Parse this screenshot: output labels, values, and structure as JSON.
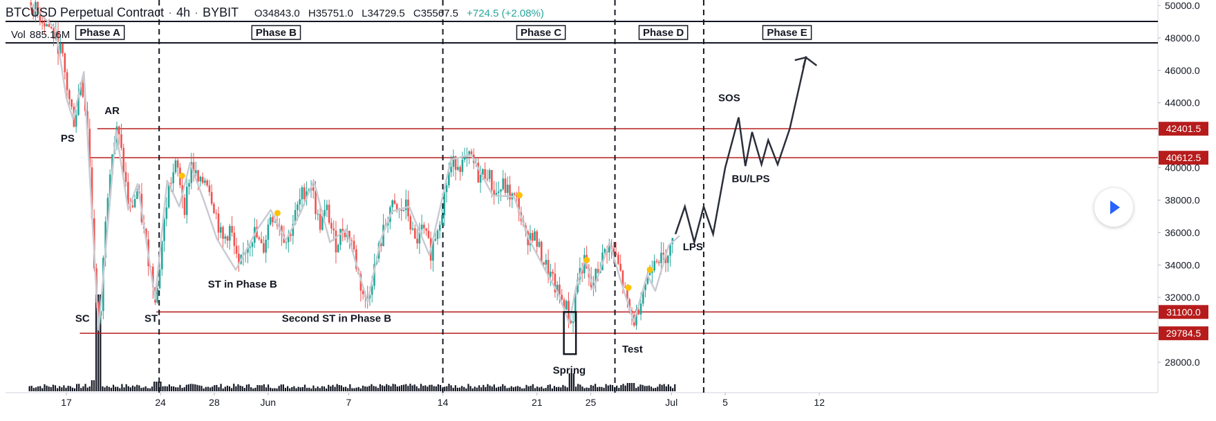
{
  "header": {
    "symbol": "BTCUSD Perpetual Contract",
    "interval": "4h",
    "exchange": "BYBIT",
    "open": "O34843.0",
    "high": "H35751.0",
    "low": "L34729.5",
    "close": "C35567.5",
    "change": "+724.5 (+2.08%)"
  },
  "volume": {
    "label": "Vol",
    "value": "885.16M"
  },
  "colors": {
    "up": "#26a69a",
    "down": "#ef5350",
    "level_line": "#b71c1c",
    "path": "#2a2e39",
    "wyckoff_wave": "#c9cbd3",
    "marker": "#ffc107"
  },
  "chart_data": {
    "type": "line",
    "title": "",
    "xlabel": "",
    "ylabel": "",
    "ylim": [
      25500,
      50500
    ],
    "x_ticks": [
      {
        "day": 17,
        "label": "17"
      },
      {
        "day": 24,
        "label": "24"
      },
      {
        "day": 28,
        "label": "28"
      },
      {
        "day": 32,
        "label": "Jun"
      },
      {
        "day": 38,
        "label": "7"
      },
      {
        "day": 45,
        "label": "14"
      },
      {
        "day": 52,
        "label": "21"
      },
      {
        "day": 56,
        "label": "25"
      },
      {
        "day": 62,
        "label": "Jul"
      },
      {
        "day": 66,
        "label": "5"
      },
      {
        "day": 73,
        "label": "12"
      }
    ],
    "y_ticks": [
      {
        "value": 28000,
        "label": "28000.0"
      },
      {
        "value": 32000,
        "label": "32000.0"
      },
      {
        "value": 34000,
        "label": "34000.0"
      },
      {
        "value": 36000,
        "label": "36000.0"
      },
      {
        "value": 38000,
        "label": "38000.0"
      },
      {
        "value": 40000,
        "label": "40000.0"
      },
      {
        "value": 44000,
        "label": "44000.0"
      },
      {
        "value": 46000,
        "label": "46000.0"
      },
      {
        "value": 48000,
        "label": "48000.0"
      },
      {
        "value": 50000,
        "label": "50000.0"
      }
    ],
    "levels": [
      {
        "value": 42401.5,
        "label": "42401.5",
        "start_day": 19.3
      },
      {
        "value": 40612.5,
        "label": "40612.5",
        "start_day": 18.6
      },
      {
        "value": 31100.0,
        "label": "31100.0",
        "start_day": 23.7
      },
      {
        "value": 29784.5,
        "label": "29784.5",
        "start_day": 18.0
      }
    ],
    "phase_dividers_day": [
      23.9,
      45.0,
      57.8,
      64.4
    ],
    "phases": [
      {
        "label": "Phase A",
        "day": 19.5
      },
      {
        "label": "Phase B",
        "day": 32.6
      },
      {
        "label": "Phase C",
        "day": 52.3
      },
      {
        "label": "Phase D",
        "day": 61.4
      },
      {
        "label": "Phase E",
        "day": 70.6
      }
    ],
    "price_series": [
      {
        "day": 14.2,
        "value": 50200
      },
      {
        "day": 15.0,
        "value": 49400
      },
      {
        "day": 15.8,
        "value": 48600
      },
      {
        "day": 16.6,
        "value": 47200
      },
      {
        "day": 17.2,
        "value": 44200
      },
      {
        "day": 17.6,
        "value": 42800
      },
      {
        "day": 18.1,
        "value": 45600
      },
      {
        "day": 18.6,
        "value": 42400
      },
      {
        "day": 19.2,
        "value": 31800
      },
      {
        "day": 19.5,
        "value": 29900
      },
      {
        "day": 19.9,
        "value": 37000
      },
      {
        "day": 20.3,
        "value": 40600
      },
      {
        "day": 20.8,
        "value": 42400
      },
      {
        "day": 21.2,
        "value": 40300
      },
      {
        "day": 21.7,
        "value": 37200
      },
      {
        "day": 22.3,
        "value": 38600
      },
      {
        "day": 22.8,
        "value": 35800
      },
      {
        "day": 23.3,
        "value": 33600
      },
      {
        "day": 23.7,
        "value": 31800
      },
      {
        "day": 24.1,
        "value": 35400
      },
      {
        "day": 24.6,
        "value": 38800
      },
      {
        "day": 25.2,
        "value": 40200
      },
      {
        "day": 25.8,
        "value": 37600
      },
      {
        "day": 26.3,
        "value": 40300
      },
      {
        "day": 26.9,
        "value": 38800
      },
      {
        "day": 27.4,
        "value": 39500
      },
      {
        "day": 28.0,
        "value": 37600
      },
      {
        "day": 28.6,
        "value": 35400
      },
      {
        "day": 29.2,
        "value": 36300
      },
      {
        "day": 29.8,
        "value": 33600
      },
      {
        "day": 30.4,
        "value": 35200
      },
      {
        "day": 31.0,
        "value": 36000
      },
      {
        "day": 31.6,
        "value": 34800
      },
      {
        "day": 32.2,
        "value": 37200
      },
      {
        "day": 32.8,
        "value": 36600
      },
      {
        "day": 33.4,
        "value": 35400
      },
      {
        "day": 34.0,
        "value": 37000
      },
      {
        "day": 34.6,
        "value": 38500
      },
      {
        "day": 35.2,
        "value": 39000
      },
      {
        "day": 35.8,
        "value": 36400
      },
      {
        "day": 36.4,
        "value": 37400
      },
      {
        "day": 37.0,
        "value": 35200
      },
      {
        "day": 37.6,
        "value": 36300
      },
      {
        "day": 38.2,
        "value": 35600
      },
      {
        "day": 38.8,
        "value": 33000
      },
      {
        "day": 39.3,
        "value": 31600
      },
      {
        "day": 39.9,
        "value": 33800
      },
      {
        "day": 40.5,
        "value": 35800
      },
      {
        "day": 41.1,
        "value": 37600
      },
      {
        "day": 41.7,
        "value": 37200
      },
      {
        "day": 42.3,
        "value": 37600
      },
      {
        "day": 42.9,
        "value": 35300
      },
      {
        "day": 43.5,
        "value": 36200
      },
      {
        "day": 44.1,
        "value": 34800
      },
      {
        "day": 44.6,
        "value": 36400
      },
      {
        "day": 45.0,
        "value": 37800
      },
      {
        "day": 45.4,
        "value": 39600
      },
      {
        "day": 45.9,
        "value": 40400
      },
      {
        "day": 46.5,
        "value": 40200
      },
      {
        "day": 47.1,
        "value": 40600
      },
      {
        "day": 47.7,
        "value": 39400
      },
      {
        "day": 48.3,
        "value": 39800
      },
      {
        "day": 48.9,
        "value": 38300
      },
      {
        "day": 49.5,
        "value": 38900
      },
      {
        "day": 50.1,
        "value": 38200
      },
      {
        "day": 50.6,
        "value": 37800
      },
      {
        "day": 51.1,
        "value": 35600
      },
      {
        "day": 51.7,
        "value": 36000
      },
      {
        "day": 52.3,
        "value": 34600
      },
      {
        "day": 52.9,
        "value": 33500
      },
      {
        "day": 53.5,
        "value": 32300
      },
      {
        "day": 54.1,
        "value": 31600
      },
      {
        "day": 54.6,
        "value": 30200
      },
      {
        "day": 55.0,
        "value": 33200
      },
      {
        "day": 55.5,
        "value": 34200
      },
      {
        "day": 56.0,
        "value": 32500
      },
      {
        "day": 56.6,
        "value": 33800
      },
      {
        "day": 57.2,
        "value": 35200
      },
      {
        "day": 57.8,
        "value": 34600
      },
      {
        "day": 58.3,
        "value": 33200
      },
      {
        "day": 58.8,
        "value": 31200
      },
      {
        "day": 59.3,
        "value": 30500
      },
      {
        "day": 59.8,
        "value": 32400
      },
      {
        "day": 60.3,
        "value": 33400
      },
      {
        "day": 60.8,
        "value": 34800
      },
      {
        "day": 61.3,
        "value": 34200
      },
      {
        "day": 61.8,
        "value": 35000
      },
      {
        "day": 62.2,
        "value": 35400
      }
    ],
    "wyckoff_wave": [
      {
        "day": 14.3,
        "value": 50000
      },
      {
        "day": 16.2,
        "value": 48600
      },
      {
        "day": 17.0,
        "value": 44300
      },
      {
        "day": 17.5,
        "value": 43000
      },
      {
        "day": 18.3,
        "value": 45900
      },
      {
        "day": 19.4,
        "value": 30000
      },
      {
        "day": 20.7,
        "value": 42300
      },
      {
        "day": 21.6,
        "value": 37400
      },
      {
        "day": 22.3,
        "value": 39000
      },
      {
        "day": 23.6,
        "value": 31900
      },
      {
        "day": 24.5,
        "value": 39200
      },
      {
        "day": 25.4,
        "value": 37600
      },
      {
        "day": 26.2,
        "value": 40300
      },
      {
        "day": 27.3,
        "value": 37800
      },
      {
        "day": 28.2,
        "value": 35600
      },
      {
        "day": 29.6,
        "value": 33700
      },
      {
        "day": 31.2,
        "value": 36200
      },
      {
        "day": 32.2,
        "value": 37400
      },
      {
        "day": 33.3,
        "value": 35500
      },
      {
        "day": 34.4,
        "value": 37200
      },
      {
        "day": 35.4,
        "value": 39200
      },
      {
        "day": 36.6,
        "value": 35400
      },
      {
        "day": 37.8,
        "value": 36200
      },
      {
        "day": 39.4,
        "value": 31700
      },
      {
        "day": 40.4,
        "value": 35600
      },
      {
        "day": 41.2,
        "value": 37300
      },
      {
        "day": 42.5,
        "value": 37600
      },
      {
        "day": 44.0,
        "value": 34600
      },
      {
        "day": 45.6,
        "value": 40500
      },
      {
        "day": 47.1,
        "value": 40800
      },
      {
        "day": 48.7,
        "value": 38300
      },
      {
        "day": 50.3,
        "value": 38200
      },
      {
        "day": 51.4,
        "value": 35600
      },
      {
        "day": 52.8,
        "value": 33400
      },
      {
        "day": 53.6,
        "value": 32200
      },
      {
        "day": 54.4,
        "value": 30400
      },
      {
        "day": 54.9,
        "value": 32600
      },
      {
        "day": 55.6,
        "value": 34400
      },
      {
        "day": 56.2,
        "value": 32500
      },
      {
        "day": 57.4,
        "value": 35400
      },
      {
        "day": 58.2,
        "value": 33100
      },
      {
        "day": 59.2,
        "value": 30500
      },
      {
        "day": 60.2,
        "value": 33400
      },
      {
        "day": 60.8,
        "value": 32400
      },
      {
        "day": 61.8,
        "value": 35200
      },
      {
        "day": 62.6,
        "value": 35800
      }
    ],
    "projection": [
      {
        "day": 62.3,
        "value": 35900
      },
      {
        "day": 63.0,
        "value": 37600
      },
      {
        "day": 63.7,
        "value": 35400
      },
      {
        "day": 64.4,
        "value": 37600
      },
      {
        "day": 65.1,
        "value": 35900
      },
      {
        "day": 66.0,
        "value": 40000
      },
      {
        "day": 67.0,
        "value": 43100
      },
      {
        "day": 67.5,
        "value": 40100
      },
      {
        "day": 68.0,
        "value": 42200
      },
      {
        "day": 68.7,
        "value": 40200
      },
      {
        "day": 69.2,
        "value": 41700
      },
      {
        "day": 69.9,
        "value": 40200
      },
      {
        "day": 70.8,
        "value": 42400
      },
      {
        "day": 72.0,
        "value": 46800
      },
      {
        "day": 72.8,
        "value": 46300
      }
    ],
    "markers": [
      {
        "day": 25.6,
        "value": 39500
      },
      {
        "day": 32.7,
        "value": 37200
      },
      {
        "day": 50.7,
        "value": 38300
      },
      {
        "day": 55.7,
        "value": 34300
      },
      {
        "day": 58.8,
        "value": 32600
      },
      {
        "day": 60.4,
        "value": 33700
      }
    ],
    "spring_box": {
      "day_start": 54.0,
      "day_end": 54.9,
      "top": 31100,
      "bottom": 28500
    },
    "annotations": [
      {
        "label": "PS",
        "day": 17.1,
        "value": 41600
      },
      {
        "label": "AR",
        "day": 20.4,
        "value": 43300
      },
      {
        "label": "SC",
        "day": 18.2,
        "value": 30500
      },
      {
        "label": "ST",
        "day": 23.3,
        "value": 30500
      },
      {
        "label": "ST in Phase B",
        "day": 30.1,
        "value": 32600
      },
      {
        "label": "Second ST in Phase B",
        "day": 37.1,
        "value": 30500
      },
      {
        "label": "Spring",
        "day": 54.4,
        "value": 27300
      },
      {
        "label": "Test",
        "day": 59.1,
        "value": 28600
      },
      {
        "label": "LPS",
        "day": 63.6,
        "value": 34900
      },
      {
        "label": "SOS",
        "day": 66.3,
        "value": 44100
      },
      {
        "label": "BU/LPS",
        "day": 67.9,
        "value": 39100
      }
    ]
  }
}
